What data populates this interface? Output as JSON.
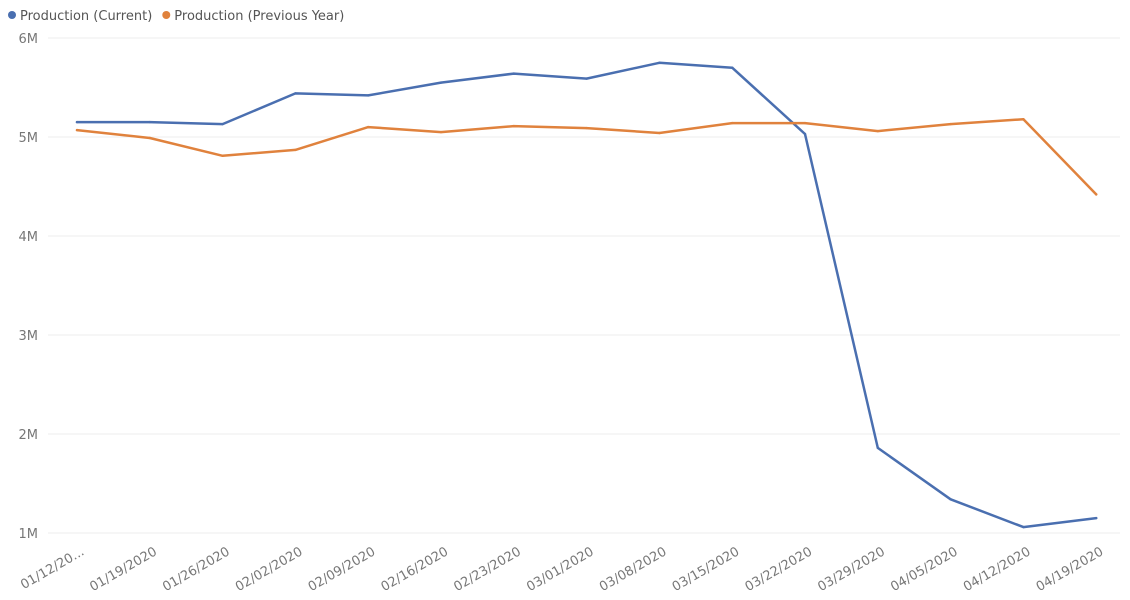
{
  "chart_data": {
    "type": "line",
    "categories": [
      "01/12/20...",
      "01/19/2020",
      "01/26/2020",
      "02/02/2020",
      "02/09/2020",
      "02/16/2020",
      "02/23/2020",
      "03/01/2020",
      "03/08/2020",
      "03/15/2020",
      "03/22/2020",
      "03/29/2020",
      "04/05/2020",
      "04/12/2020",
      "04/19/2020"
    ],
    "series": [
      {
        "name": "Production (Current)",
        "color": "#4A6FB0",
        "values": [
          5.15,
          5.15,
          5.13,
          5.44,
          5.42,
          5.55,
          5.64,
          5.59,
          5.75,
          5.7,
          5.03,
          1.86,
          1.34,
          1.06,
          1.15
        ]
      },
      {
        "name": "Production (Previous Year)",
        "color": "#E0823D",
        "values": [
          5.07,
          4.99,
          4.81,
          4.87,
          5.1,
          5.05,
          5.11,
          5.09,
          5.04,
          5.14,
          5.14,
          5.06,
          5.13,
          5.18,
          4.42
        ]
      }
    ],
    "y_unit": "M",
    "ylim": [
      1,
      6
    ],
    "yticks": [
      1,
      2,
      3,
      4,
      5,
      6
    ],
    "ytick_labels": [
      "1M",
      "2M",
      "3M",
      "4M",
      "5M",
      "6M"
    ],
    "grid": true,
    "legend_position": "top-left"
  }
}
